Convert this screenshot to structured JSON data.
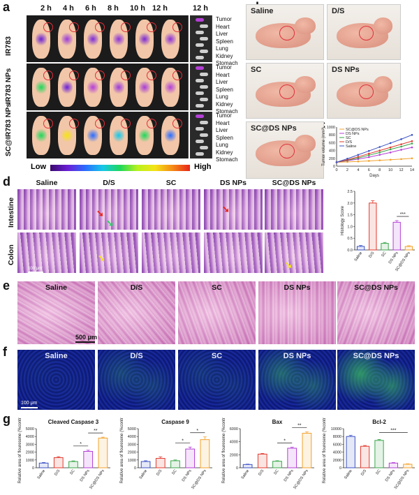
{
  "panels": {
    "a": "a",
    "b": "b",
    "c": "c",
    "d": "d",
    "e": "e",
    "f": "f",
    "g": "g"
  },
  "panel_a": {
    "times": [
      "2 h",
      "4 h",
      "6 h",
      "8 h",
      "10 h",
      "12 h",
      "12 h"
    ],
    "rows": [
      "IR783",
      "IR783 NPs",
      "SC@IR783 NPs"
    ],
    "organs": [
      "Tumor",
      "Heart",
      "Liver",
      "Spleen",
      "Lung",
      "Kidney",
      "Stomach"
    ],
    "scale_low": "Low",
    "scale_high": "High"
  },
  "panel_b": {
    "groups": [
      "Saline",
      "D/S",
      "SC",
      "DS NPs",
      "SC@DS NPs"
    ]
  },
  "panel_d": {
    "groups": [
      "Saline",
      "D/S",
      "SC",
      "DS NPs",
      "SC@DS NPs"
    ],
    "rows": [
      "Intestine",
      "Colon"
    ],
    "scale_bar": "100 μm"
  },
  "panel_e": {
    "groups": [
      "Saline",
      "D/S",
      "SC",
      "DS NPs",
      "SC@DS NPs"
    ],
    "scale_bar": "500 μm"
  },
  "panel_f": {
    "groups": [
      "Saline",
      "D/S",
      "SC",
      "DS NPs",
      "SC@DS NPs"
    ],
    "scale_bar": "100 μm"
  },
  "colors": {
    "Saline": "#3b52c4",
    "D/S": "#e03a2e",
    "SC": "#3aa64a",
    "DS NPs": "#b43fd6",
    "SC@DS NPs": "#f2a22c"
  },
  "chart_data": [
    {
      "id": "c",
      "type": "line",
      "title": "",
      "xlabel": "Days",
      "ylabel": "Tumor volume (mm³)",
      "x": [
        0,
        2,
        4,
        6,
        8,
        10,
        12,
        14
      ],
      "xticks": [
        "0",
        "2",
        "4",
        "6",
        "8",
        "10",
        "12",
        "14"
      ],
      "yticks": [
        "0",
        "200",
        "400",
        "600",
        "800",
        "1000"
      ],
      "ylim": [
        0,
        1000
      ],
      "legend": "top-left",
      "series": [
        {
          "name": "SC@DS NPs",
          "values": [
            100,
            110,
            120,
            135,
            150,
            165,
            180,
            200
          ]
        },
        {
          "name": "DS NPs",
          "values": [
            100,
            140,
            180,
            230,
            290,
            350,
            420,
            480
          ]
        },
        {
          "name": "SC",
          "values": [
            100,
            150,
            210,
            280,
            350,
            430,
            500,
            580
          ]
        },
        {
          "name": "D/S",
          "values": [
            100,
            160,
            240,
            320,
            400,
            480,
            560,
            640
          ]
        },
        {
          "name": "Saline",
          "values": [
            100,
            190,
            290,
            390,
            490,
            590,
            690,
            800
          ]
        }
      ]
    },
    {
      "id": "d",
      "type": "bar",
      "title": "",
      "xlabel": "",
      "ylabel": "Histology Score",
      "categories": [
        "Saline",
        "D/S",
        "SC",
        "DS NPs",
        "SC@DS NPs"
      ],
      "values": [
        0.15,
        2.0,
        0.28,
        1.18,
        0.15
      ],
      "errors": [
        0.04,
        0.1,
        0.04,
        0.07,
        0.03
      ],
      "yticks": [
        "0.0",
        "0.5",
        "1.0",
        "1.5",
        "2.0",
        "2.5"
      ],
      "ylim": [
        0,
        2.5
      ],
      "significance": [
        {
          "between": [
            "DS NPs",
            "SC@DS NPs"
          ],
          "label": "***"
        }
      ]
    },
    {
      "id": "g1",
      "type": "bar",
      "title": "Cleaved Caspase 3",
      "xlabel": "",
      "ylabel": "Relative area of flouresene (%control)",
      "categories": [
        "Saline",
        "D/S",
        "SC",
        "DS NPs",
        "SC@DS NPs"
      ],
      "values": [
        600,
        1300,
        800,
        2100,
        3800
      ],
      "errors": [
        80,
        120,
        80,
        150,
        120
      ],
      "yticks": [
        "0",
        "1000",
        "2000",
        "3000",
        "4000",
        "5000"
      ],
      "ylim": [
        0,
        5000
      ],
      "significance": [
        {
          "between": [
            "SC",
            "DS NPs"
          ],
          "label": "*"
        },
        {
          "between": [
            "DS NPs",
            "SC@DS NPs"
          ],
          "label": "**"
        }
      ]
    },
    {
      "id": "g2",
      "type": "bar",
      "title": "Caspase 9",
      "xlabel": "",
      "ylabel": "Relative area of flouresene (%control)",
      "categories": [
        "Saline",
        "D/S",
        "SC",
        "DS NPs",
        "SC@DS NPs"
      ],
      "values": [
        800,
        1200,
        900,
        2400,
        3600
      ],
      "errors": [
        100,
        200,
        100,
        250,
        350
      ],
      "yticks": [
        "0",
        "1000",
        "2000",
        "3000",
        "4000",
        "5000"
      ],
      "ylim": [
        0,
        5000
      ],
      "significance": [
        {
          "between": [
            "SC",
            "DS NPs"
          ],
          "label": "*"
        },
        {
          "between": [
            "DS NPs",
            "SC@DS NPs"
          ],
          "label": "*"
        }
      ]
    },
    {
      "id": "g3",
      "type": "bar",
      "title": "Bax",
      "xlabel": "",
      "ylabel": "Relative area of flouresene (%control)",
      "categories": [
        "Saline",
        "D/S",
        "SC",
        "DS NPs",
        "SC@DS NPs"
      ],
      "values": [
        500,
        2100,
        1000,
        3000,
        5300
      ],
      "errors": [
        60,
        100,
        80,
        150,
        200
      ],
      "yticks": [
        "0",
        "2000",
        "4000",
        "6000"
      ],
      "ylim": [
        0,
        6000
      ],
      "significance": [
        {
          "between": [
            "SC",
            "DS NPs"
          ],
          "label": "*"
        },
        {
          "between": [
            "DS NPs",
            "SC@DS NPs"
          ],
          "label": "**"
        }
      ]
    },
    {
      "id": "g4",
      "type": "bar",
      "title": "Bcl-2",
      "xlabel": "",
      "ylabel": "Relative area of flouresene (%control)",
      "categories": [
        "Saline",
        "D/S",
        "SC",
        "DS NPs",
        "SC@DS NPs"
      ],
      "values": [
        8000,
        5500,
        7000,
        1200,
        900
      ],
      "errors": [
        300,
        200,
        250,
        150,
        120
      ],
      "yticks": [
        "0",
        "2000",
        "4000",
        "6000",
        "8000",
        "10000"
      ],
      "ylim": [
        0,
        10000
      ],
      "significance": [
        {
          "between": [
            "SC",
            "SC@DS NPs"
          ],
          "label": "***"
        }
      ]
    }
  ]
}
